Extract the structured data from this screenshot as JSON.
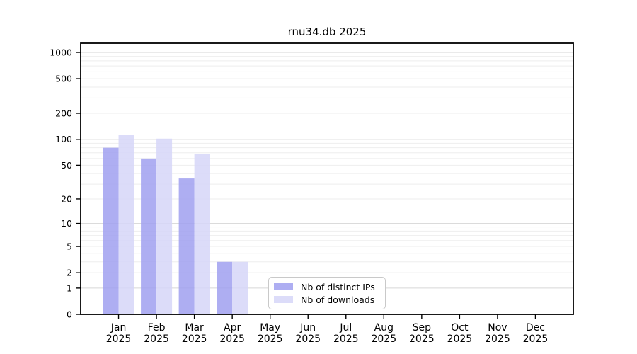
{
  "window": {
    "title": "rnu34.db 2025"
  },
  "chart_data": {
    "type": "bar",
    "title": "rnu34.db 2025",
    "categories": [
      "Jan",
      "Feb",
      "Mar",
      "Apr",
      "May",
      "Jun",
      "Jul",
      "Aug",
      "Sep",
      "Oct",
      "Nov",
      "Dec"
    ],
    "category_year": "2025",
    "series": [
      {
        "name": "Nb of distinct IPs",
        "color": "#a0a0f0",
        "values": [
          80,
          60,
          35,
          3,
          0,
          0,
          0,
          0,
          0,
          0,
          0,
          0
        ]
      },
      {
        "name": "Nb of downloads",
        "color": "#d6d6f8",
        "values": [
          112,
          102,
          68,
          3,
          0,
          0,
          0,
          0,
          0,
          0,
          0,
          0
        ]
      }
    ],
    "yscale": "log1p",
    "yticks": [
      0,
      1,
      2,
      5,
      10,
      20,
      50,
      100,
      200,
      500,
      1000
    ],
    "ylim": [
      0,
      1280
    ],
    "grid": true,
    "legend_position": "bottom-center-inside",
    "colors": {
      "axis": "#000000",
      "grid_major": "#d6d6d6",
      "grid_minor": "#eeeeee",
      "text": "#000000",
      "background": "#ffffff"
    }
  }
}
